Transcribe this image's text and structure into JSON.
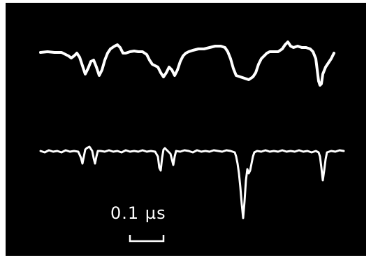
{
  "scale_bar": {
    "label": "0.1 µs"
  },
  "colors": {
    "background": "#000000",
    "trace": "#ffffff",
    "page": "#ffffff"
  }
}
